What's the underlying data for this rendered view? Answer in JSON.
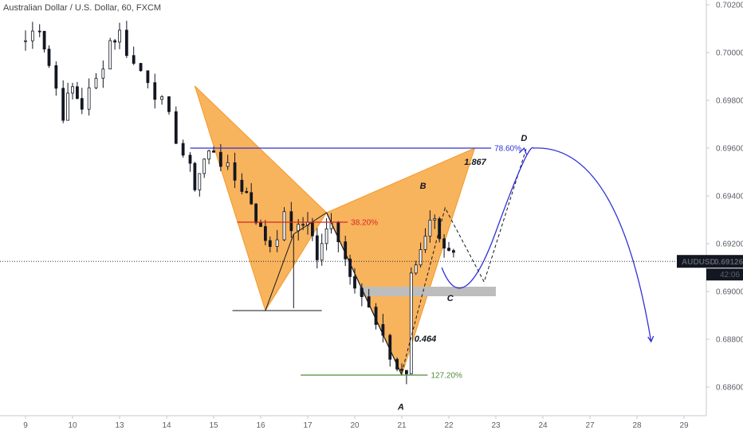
{
  "chart_title": "Australian Dollar / U.S. Dollar, 60, FXCM",
  "chart_data": {
    "type": "candlestick",
    "symbol": "AUDUSD",
    "price_label": "0.69126",
    "countdown_label": "42:06",
    "last_price": 0.69126,
    "ylim": [
      0.6848,
      0.7022
    ],
    "y_ticks": [
      "0.70200",
      "0.70000",
      "0.69800",
      "0.69600",
      "0.69400",
      "0.69200",
      "0.69000",
      "0.68800",
      "0.68600"
    ],
    "x_ticks": [
      "9",
      "10",
      "13",
      "14",
      "15",
      "16",
      "17",
      "20",
      "21",
      "22",
      "23",
      "24",
      "27",
      "28",
      "29"
    ],
    "grid": false,
    "price_path": [
      [
        0.0,
        0.7005
      ],
      [
        0.3,
        0.7012
      ],
      [
        0.5,
        0.6995
      ],
      [
        0.8,
        0.6975
      ],
      [
        1.0,
        0.6985
      ],
      [
        1.2,
        0.6978
      ],
      [
        1.5,
        0.6988
      ],
      [
        1.8,
        0.7005
      ],
      [
        2.0,
        0.7008
      ],
      [
        2.3,
        0.6995
      ],
      [
        2.6,
        0.699
      ],
      [
        2.9,
        0.6978
      ],
      [
        3.2,
        0.6965
      ],
      [
        3.5,
        0.695
      ],
      [
        3.6,
        0.6945
      ],
      [
        3.8,
        0.6955
      ],
      [
        4.0,
        0.696
      ],
      [
        4.3,
        0.695
      ],
      [
        4.6,
        0.6944
      ],
      [
        4.8,
        0.6938
      ],
      [
        5.0,
        0.6925
      ],
      [
        5.2,
        0.692
      ],
      [
        5.5,
        0.693
      ],
      [
        5.8,
        0.6925
      ],
      [
        6.0,
        0.6931
      ],
      [
        6.2,
        0.6914
      ],
      [
        6.3,
        0.6918
      ],
      [
        6.5,
        0.6932
      ],
      [
        6.8,
        0.6914
      ],
      [
        7.0,
        0.6905
      ],
      [
        7.3,
        0.6892
      ],
      [
        7.6,
        0.6878
      ],
      [
        7.9,
        0.6868
      ],
      [
        8.1,
        0.6866
      ],
      [
        8.2,
        0.6905
      ],
      [
        8.4,
        0.6918
      ],
      [
        8.6,
        0.6932
      ],
      [
        8.8,
        0.6925
      ],
      [
        9.0,
        0.6915
      ],
      [
        9.2,
        0.6912
      ]
    ],
    "candles_per_day": 8,
    "pattern": {
      "name": "bat",
      "X": [
        4.9,
        0.6889
      ],
      "A": [
        6.36,
        0.6932
      ],
      "B": [
        8.0,
        0.6865
      ],
      "C": [
        8.72,
        0.696
      ]
    },
    "triangle_left": {
      "p1": [
        3.6,
        0.6986
      ],
      "p2": [
        5.1,
        0.6892
      ],
      "p3": [
        6.4,
        0.6933
      ]
    },
    "triangle_right": {
      "p1": [
        6.4,
        0.6933
      ],
      "p2": [
        8.0,
        0.6865
      ],
      "p3": [
        9.55,
        0.696
      ]
    },
    "levels": [
      {
        "label": "78.60%",
        "value": 0.696,
        "x1": 3.5,
        "x2": 9.9,
        "color": "#2f31d8"
      },
      {
        "label": "38.20%",
        "value": 0.6929,
        "x1": 4.5,
        "x2": 6.85,
        "color": "#d42a1f"
      },
      {
        "label": "127.20%",
        "value": 0.6865,
        "x1": 5.85,
        "x2": 8.55,
        "color": "#4e8a3a"
      }
    ],
    "points": [
      {
        "label": "A",
        "x": 7.98,
        "y": 0.68505
      },
      {
        "label": "B",
        "x": 8.45,
        "y": 0.6943
      },
      {
        "label": "C",
        "x": 9.03,
        "y": 0.6896
      },
      {
        "label": "D",
        "x": 10.6,
        "y": 0.6963
      }
    ],
    "ratios": [
      {
        "label": "1.867",
        "x": 9.56,
        "y": 0.6953
      },
      {
        "label": "0.464",
        "x": 8.5,
        "y": 0.6879
      }
    ],
    "zone": {
      "x1": 7.1,
      "x2": 10.0,
      "y1": 0.6902,
      "y2": 0.6898,
      "color": "#bdbdbd"
    },
    "dashed_path": [
      [
        8.0,
        0.6866
      ],
      [
        8.92,
        0.6935
      ],
      [
        9.75,
        0.6904
      ],
      [
        10.65,
        0.696
      ]
    ],
    "projection": [
      [
        8.85,
        0.691
      ],
      [
        9.3,
        0.69005
      ],
      [
        10.0,
        0.6925
      ],
      [
        10.8,
        0.696
      ],
      [
        13.3,
        0.6879
      ]
    ]
  }
}
